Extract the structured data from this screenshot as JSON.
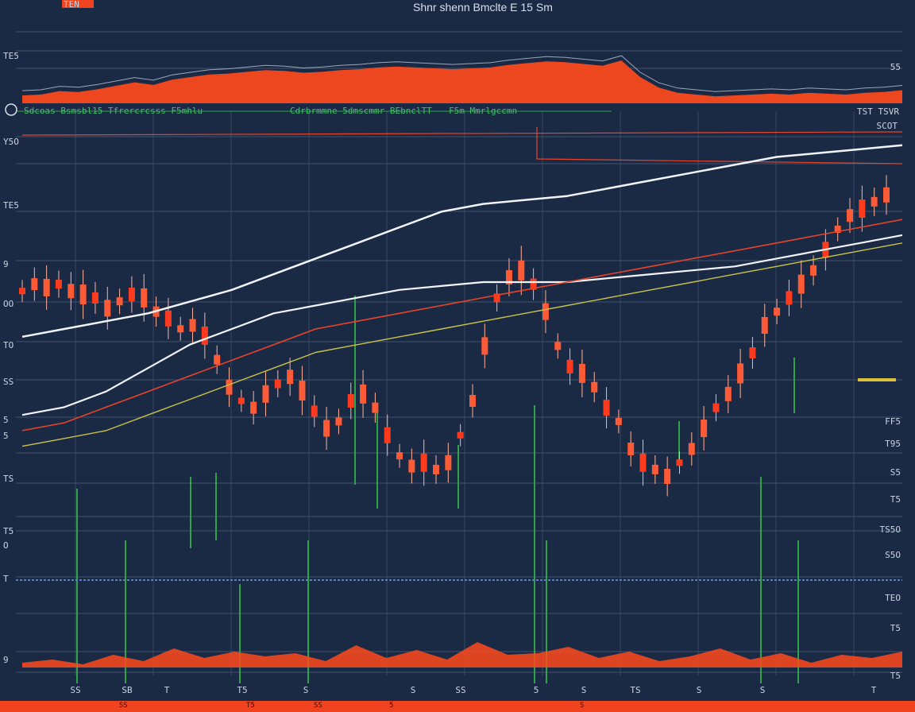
{
  "header": {
    "top_left_badge": "TEN",
    "top_title": "Shnr shenn Bmclte E 15 Sm",
    "ticker_left": "Sdcoas Bsmsbl15 Tfrercrcsss F5mhlu",
    "ticker_mid": "Cdrbrmmne 5dmscmmr BEbnclTT",
    "ticker_right": "F5m Mmrlgccmn",
    "top_right_1": "TST TSVR",
    "top_right_2": "SCOT"
  },
  "colors": {
    "background": "#1b2a44",
    "grid": "#4d5d78",
    "candle_up": "#ff5a36",
    "candle_down": "#ff3b1f",
    "volume": "#2fa24a",
    "ma_white": "#f2f4f8",
    "ma_red": "#e8442a",
    "ma_yellow": "#c9c24a",
    "overview_fill": "#ff4a1c",
    "accent_bar": "#f0431f",
    "marker_yellow": "#e0c23a"
  },
  "chart_data": {
    "type": "line",
    "title": "",
    "xlabel": "",
    "ylabel": "",
    "ylim": [
      0,
      100
    ],
    "grid": true,
    "legend": "none",
    "left_tick_labels": [
      "TE5",
      "Y5O",
      "TE5",
      "9",
      "OO",
      "TO",
      "SS",
      "5",
      "5",
      "TS",
      "T5",
      "O",
      "T",
      "9"
    ],
    "right_tick_labels": [
      "55",
      "TST TSVR",
      "SCOT",
      "FF5",
      "T95",
      "S5",
      "T5",
      "TS5O",
      "S5O",
      "TEO",
      "T5",
      "T5"
    ],
    "bottom_tick_labels": [
      "SS",
      "SB",
      "T",
      "T5",
      "S",
      "S",
      "SS",
      "5",
      "S",
      "TS",
      "S",
      "S",
      "T"
    ],
    "overview_series": [
      9,
      10,
      14,
      13,
      16,
      20,
      24,
      21,
      27,
      30,
      33,
      34,
      36,
      38,
      37,
      35,
      36,
      38,
      39,
      41,
      42,
      41,
      40,
      39,
      40,
      41,
      44,
      46,
      48,
      47,
      45,
      43,
      49,
      30,
      18,
      12,
      10,
      8,
      9,
      10,
      11,
      10,
      12,
      11,
      10,
      12,
      13,
      15
    ],
    "price_series": [
      68,
      70,
      69,
      70,
      68,
      67,
      66,
      63,
      65,
      67,
      66,
      62,
      60,
      57,
      58,
      55,
      48,
      40,
      36,
      34,
      38,
      41,
      43,
      39,
      33,
      28,
      30,
      36,
      38,
      34,
      26,
      20,
      17,
      18,
      16,
      18,
      26,
      36,
      52,
      66,
      72,
      74,
      70,
      62,
      52,
      46,
      44,
      40,
      34,
      30,
      22,
      18,
      16,
      14,
      18,
      22,
      28,
      34,
      38,
      44,
      50,
      58,
      62,
      66,
      70,
      74,
      80,
      86,
      90,
      92,
      94,
      96
    ],
    "ma_white_1": [
      48,
      50,
      52,
      54,
      57,
      60,
      64,
      68,
      72,
      76,
      80,
      82,
      83,
      84,
      86,
      88,
      90,
      92,
      94,
      95,
      96,
      97
    ],
    "ma_white_2": [
      28,
      30,
      34,
      40,
      46,
      50,
      54,
      56,
      58,
      60,
      61,
      62,
      62,
      62,
      63,
      64,
      65,
      66,
      68,
      70,
      72,
      74
    ],
    "ma_red": [
      24,
      26,
      30,
      34,
      38,
      42,
      46,
      50,
      52,
      54,
      56,
      58,
      60,
      62,
      64,
      66,
      68,
      70,
      72,
      74,
      76,
      78
    ],
    "ma_yellow": [
      20,
      22,
      24,
      28,
      32,
      36,
      40,
      44,
      46,
      48,
      50,
      52,
      54,
      56,
      58,
      60,
      62,
      64,
      66,
      68,
      70,
      72
    ],
    "volume": [
      3,
      5,
      2,
      8,
      4,
      12,
      6,
      10,
      7,
      9,
      4,
      14,
      6,
      11,
      5,
      16,
      8,
      9,
      13,
      6,
      10,
      4,
      7,
      12,
      5,
      9,
      3,
      8,
      6,
      10
    ]
  }
}
